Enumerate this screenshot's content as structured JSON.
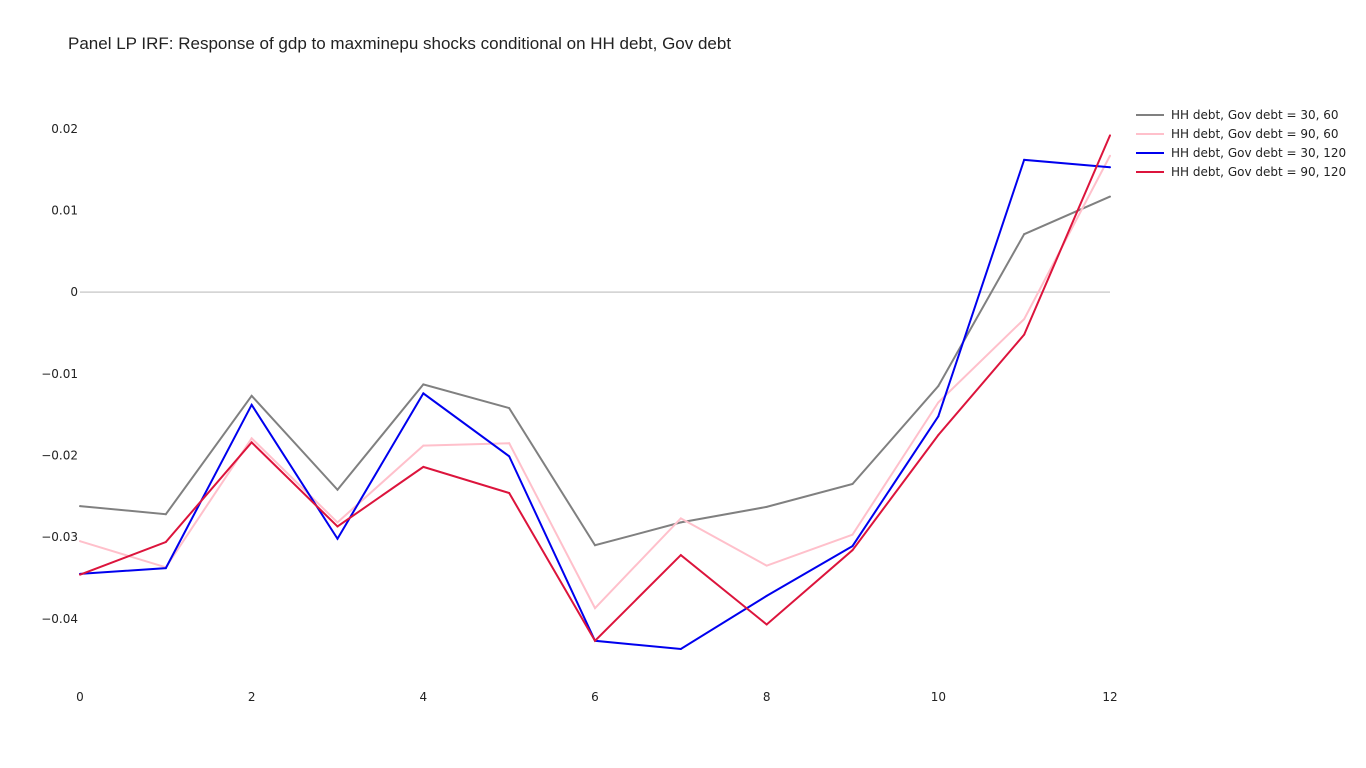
{
  "chart_data": {
    "type": "line",
    "title": "Panel LP IRF: Response of gdp to maxminepu shocks conditional on HH debt, Gov debt",
    "xlabel": "",
    "ylabel": "",
    "x": [
      0,
      1,
      2,
      3,
      4,
      5,
      6,
      7,
      8,
      9,
      10,
      11,
      12
    ],
    "xlim": [
      0,
      12
    ],
    "ylim": [
      -0.0475,
      0.025
    ],
    "x_ticks": [
      0,
      2,
      4,
      6,
      8,
      10,
      12
    ],
    "x_tick_labels": [
      "0",
      "2",
      "4",
      "6",
      "8",
      "10",
      "12"
    ],
    "y_ticks": [
      -0.04,
      -0.03,
      -0.02,
      -0.01,
      0,
      0.01,
      0.02
    ],
    "y_tick_labels": [
      "−0.04",
      "−0.03",
      "−0.02",
      "−0.01",
      "0",
      "0.01",
      "0.02"
    ],
    "grid": false,
    "zero_line": true,
    "legend_position": "top-right",
    "series": [
      {
        "name": "HH debt, Gov debt = 30, 60",
        "color": "#808080",
        "values": [
          -0.0262,
          -0.0272,
          -0.0127,
          -0.0242,
          -0.0113,
          -0.0142,
          -0.031,
          -0.0282,
          -0.0263,
          -0.0235,
          -0.0115,
          0.0071,
          0.0117
        ]
      },
      {
        "name": "HH debt, Gov debt = 90, 60",
        "color": "#ffc0cb",
        "values": [
          -0.0305,
          -0.0337,
          -0.0179,
          -0.0282,
          -0.0188,
          -0.0185,
          -0.0387,
          -0.0277,
          -0.0335,
          -0.0297,
          -0.0135,
          -0.0033,
          0.0167
        ]
      },
      {
        "name": "HH debt, Gov debt = 30, 120",
        "color": "#0000ee",
        "values": [
          -0.0345,
          -0.0338,
          -0.0138,
          -0.0302,
          -0.0124,
          -0.0201,
          -0.0427,
          -0.0437,
          -0.0372,
          -0.0311,
          -0.0152,
          0.0162,
          0.0153
        ]
      },
      {
        "name": "HH debt, Gov debt = 90, 120",
        "color": "#dc143c",
        "values": [
          -0.0346,
          -0.0306,
          -0.0184,
          -0.0287,
          -0.0214,
          -0.0246,
          -0.0427,
          -0.0322,
          -0.0407,
          -0.0316,
          -0.0175,
          -0.0052,
          0.0192
        ]
      }
    ]
  }
}
